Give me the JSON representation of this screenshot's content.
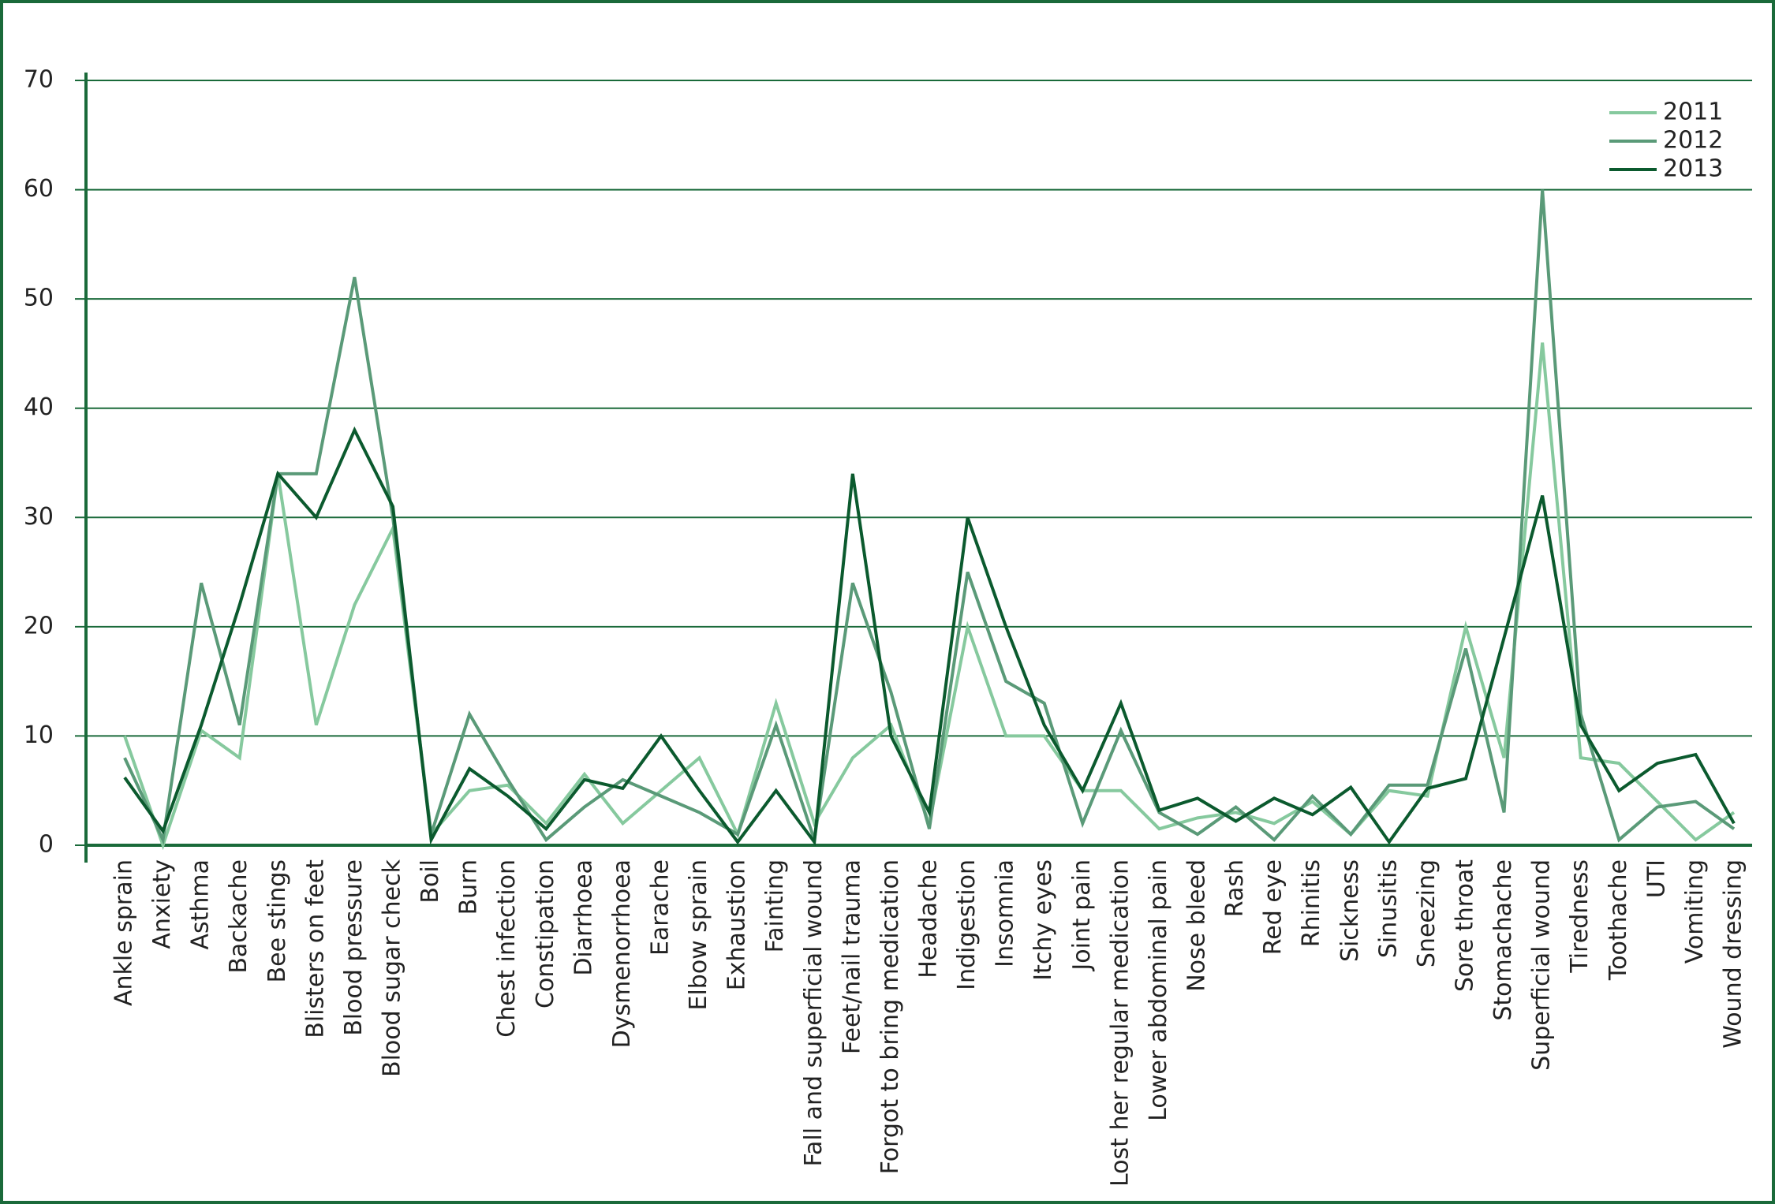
{
  "chart_data": {
    "type": "line",
    "categories": [
      "Ankle sprain",
      "Anxiety",
      "Asthma",
      "Backache",
      "Bee stings",
      "Blisters on feet",
      "Blood pressure",
      "Blood sugar check",
      "Boil",
      "Burn",
      "Chest infection",
      "Constipation",
      "Diarrhoea",
      "Dysmenorrhoea",
      "Earache",
      "Elbow sprain",
      "Exhaustion",
      "Fainting",
      "Fall and superficial wound",
      "Feet/nail trauma",
      "Forgot to bring medication",
      "Headache",
      "Indigestion",
      "Insomnia",
      "Itchy eyes",
      "Joint pain",
      "Lost her regular medication",
      "Lower abdominal pain",
      "Nose bleed",
      "Rash",
      "Red eye",
      "Rhinitis",
      "Sickness",
      "Sinusitis",
      "Sneezing",
      "Sore throat",
      "Stomachache",
      "Superficial wound",
      "Tiredness",
      "Toothache",
      "UTI",
      "Vomiting",
      "Wound dressing"
    ],
    "series": [
      {
        "name": "2011",
        "color": "#86c99e",
        "values": [
          10,
          0,
          10.5,
          8,
          34,
          11,
          22,
          29,
          1,
          5,
          5.5,
          2,
          6.5,
          2,
          5,
          8,
          1,
          13,
          2,
          8,
          11,
          2,
          20,
          10,
          10,
          5,
          5,
          1.5,
          2.5,
          3,
          2,
          4,
          1,
          5,
          4.5,
          20,
          8,
          46,
          8,
          7.5,
          4,
          0.5,
          3
        ]
      },
      {
        "name": "2012",
        "color": "#5a9a78",
        "values": [
          8,
          0.5,
          24,
          11,
          34,
          34,
          52,
          30,
          1,
          12,
          6,
          0.5,
          3.5,
          6,
          4.5,
          3,
          1,
          11,
          0.5,
          24,
          14,
          1.5,
          25,
          15,
          13,
          2,
          10.5,
          3,
          1,
          3.5,
          0.5,
          4.5,
          1,
          5.5,
          5.5,
          18,
          3,
          60,
          12,
          0.5,
          3.5,
          4,
          1.5
        ]
      },
      {
        "name": "2013",
        "color": "#0b5a2e",
        "values": [
          6.2,
          1.3,
          11,
          22,
          34,
          30,
          38,
          31,
          0.5,
          7,
          4.5,
          1.5,
          6,
          5.2,
          10,
          5,
          0.3,
          5,
          0.3,
          34,
          10,
          3,
          30,
          20,
          11,
          5,
          13,
          3.2,
          4.3,
          2.2,
          4.3,
          2.8,
          5.3,
          0.3,
          5.2,
          6.1,
          19,
          32,
          11,
          5,
          7.5,
          8.3,
          2
        ]
      }
    ],
    "ylim": [
      0,
      70
    ],
    "yticks": [
      0,
      10,
      20,
      30,
      40,
      50,
      60,
      70
    ],
    "grid": true,
    "legend": "top-right"
  }
}
